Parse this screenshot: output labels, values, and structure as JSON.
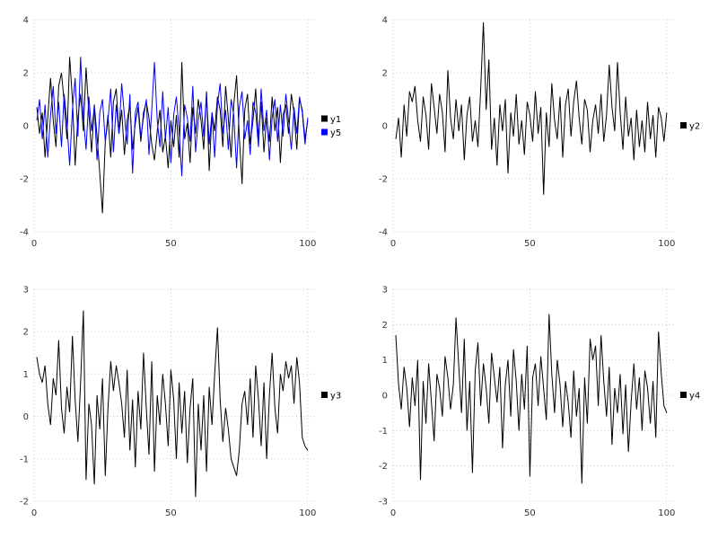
{
  "chart_data": [
    {
      "type": "line",
      "position": "top-left",
      "title": "",
      "xlabel": "",
      "ylabel": "",
      "xlim": [
        0,
        103
      ],
      "ylim": [
        -4,
        4
      ],
      "x_ticks": [
        0,
        50,
        100
      ],
      "y_ticks": [
        -4,
        -2,
        0,
        2,
        4
      ],
      "grid": true,
      "legend_position": "right-center",
      "series": [
        {
          "name": "y1",
          "color": "#000000",
          "values": [
            0.7,
            -0.3,
            0.5,
            -1.2,
            0.3,
            1.8,
            0.2,
            -0.8,
            1.5,
            2.0,
            0.9,
            -0.5,
            2.6,
            1.0,
            -1.5,
            0.3,
            1.2,
            -0.2,
            2.2,
            0.5,
            -1.0,
            0.8,
            -0.4,
            -1.8,
            -3.3,
            -0.6,
            0.4,
            -1.2,
            0.9,
            1.4,
            -0.3,
            0.6,
            -1.1,
            0.2,
            0.8,
            -0.9,
            0.1,
            0.7,
            -0.6,
            0.5,
            0.9,
            0.3,
            -0.7,
            -1.3,
            -0.2,
            0.6,
            -1.0,
            -0.4,
            -1.6,
            0.2,
            -0.8,
            0.4,
            -1.2,
            2.4,
            -0.5,
            0.1,
            -1.4,
            0.7,
            -0.3,
            1.0,
            0.2,
            -0.9,
            1.3,
            -1.7,
            0.5,
            -0.2,
            1.1,
            0.6,
            -0.8,
            1.5,
            0.3,
            -1.2,
            0.8,
            1.9,
            -0.4,
            -2.2,
            0.6,
            1.2,
            -0.7,
            0.2,
            1.4,
            -0.5,
            0.9,
            -1.0,
            0.3,
            -0.6,
            1.1,
            -0.2,
            0.7,
            -1.4,
            0.4,
            0.8,
            -0.3,
            1.2,
            0.5,
            -0.9,
            1.0,
            0.6,
            -0.5,
            0.2
          ]
        },
        {
          "name": "y5",
          "color": "#0000ff",
          "values": [
            0.2,
            1.0,
            -0.5,
            0.8,
            -1.2,
            0.4,
            1.5,
            -0.3,
            0.9,
            -0.8,
            1.2,
            0.1,
            -1.5,
            0.6,
            1.8,
            -0.4,
            2.6,
            0.3,
            -0.9,
            1.1,
            -0.2,
            0.7,
            -1.3,
            0.5,
            1.0,
            -0.6,
            0.2,
            1.4,
            -1.0,
            0.8,
            -0.3,
            1.6,
            0.4,
            -0.7,
            1.2,
            -1.8,
            0.5,
            0.9,
            -0.4,
            0.3,
            1.0,
            -1.1,
            0.6,
            2.4,
            0.2,
            -0.8,
            1.3,
            -0.5,
            0.7,
            -1.4,
            0.4,
            1.1,
            -0.2,
            -1.9,
            0.8,
            0.3,
            -0.6,
            1.5,
            -1.0,
            0.2,
            0.9,
            -0.4,
            1.2,
            -0.7,
            0.5,
            -1.2,
            0.8,
            1.6,
            -0.3,
            0.6,
            -0.9,
            1.0,
            0.4,
            -1.6,
            0.7,
            1.3,
            -0.5,
            0.2,
            -1.1,
            0.9,
            0.5,
            -0.8,
            1.4,
            -0.2,
            0.6,
            -1.3,
            0.3,
            1.0,
            -0.6,
            0.8,
            -0.4,
            1.2,
            0.2,
            -0.9,
            0.7,
            -0.3,
            1.1,
            0.5,
            -0.7,
            0.3
          ]
        }
      ]
    },
    {
      "type": "line",
      "position": "top-right",
      "title": "",
      "xlabel": "",
      "ylabel": "",
      "xlim": [
        0,
        103
      ],
      "ylim": [
        -4,
        4
      ],
      "x_ticks": [
        0,
        50,
        100
      ],
      "y_ticks": [
        -4,
        -2,
        0,
        2,
        4
      ],
      "grid": true,
      "legend_position": "right-center",
      "series": [
        {
          "name": "y2",
          "color": "#000000",
          "values": [
            -0.5,
            0.3,
            -1.2,
            0.8,
            -0.4,
            1.3,
            0.9,
            1.5,
            0.2,
            -0.6,
            1.1,
            0.4,
            -0.9,
            1.6,
            0.7,
            -0.3,
            1.2,
            0.5,
            -1.0,
            2.1,
            0.3,
            -0.5,
            1.0,
            -0.2,
            0.8,
            -1.3,
            0.4,
            1.1,
            -0.6,
            0.2,
            -0.8,
            1.4,
            3.9,
            0.6,
            2.5,
            -0.9,
            0.3,
            -1.5,
            0.8,
            -0.2,
            1.0,
            -1.8,
            0.5,
            -0.4,
            1.2,
            -0.7,
            0.2,
            -1.1,
            0.9,
            0.4,
            -0.6,
            1.3,
            -0.3,
            0.7,
            -2.6,
            0.5,
            -0.8,
            1.6,
            0.2,
            -0.5,
            1.1,
            -1.2,
            0.8,
            1.4,
            -0.4,
            0.9,
            1.7,
            0.3,
            -0.7,
            1.0,
            0.6,
            -1.0,
            0.2,
            0.8,
            -0.3,
            1.2,
            -0.6,
            0.4,
            2.3,
            0.7,
            -0.2,
            2.4,
            0.5,
            -0.9,
            1.1,
            -0.4,
            0.3,
            -1.3,
            0.6,
            -0.8,
            0.2,
            -1.0,
            0.9,
            -0.5,
            0.4,
            -1.2,
            0.7,
            0.3,
            -0.6,
            0.5
          ]
        }
      ]
    },
    {
      "type": "line",
      "position": "bottom-left",
      "title": "",
      "xlabel": "",
      "ylabel": "",
      "xlim": [
        0,
        103
      ],
      "ylim": [
        -2,
        3
      ],
      "x_ticks": [
        0,
        50,
        100
      ],
      "y_ticks": [
        -2,
        -1,
        0,
        1,
        2,
        3
      ],
      "grid": true,
      "legend_position": "right-center",
      "series": [
        {
          "name": "y3",
          "color": "#000000",
          "values": [
            1.4,
            1.0,
            0.8,
            1.2,
            0.3,
            -0.2,
            0.9,
            0.5,
            1.8,
            0.2,
            -0.4,
            0.7,
            0.1,
            1.9,
            0.4,
            -0.6,
            0.8,
            2.5,
            -1.5,
            0.3,
            -0.2,
            -1.6,
            0.5,
            -0.3,
            0.9,
            -1.4,
            0.2,
            1.3,
            0.6,
            1.2,
            0.8,
            0.3,
            -0.5,
            1.1,
            -0.8,
            0.4,
            -1.2,
            0.6,
            -0.3,
            1.5,
            0.2,
            -0.9,
            1.3,
            -1.3,
            0.5,
            -0.2,
            1.0,
            0.3,
            -0.7,
            1.1,
            0.4,
            -1.0,
            0.8,
            -0.4,
            0.6,
            -1.1,
            0.2,
            0.9,
            -1.9,
            0.3,
            -0.8,
            0.5,
            -1.3,
            0.7,
            -0.2,
            1.0,
            2.1,
            0.4,
            -0.6,
            0.2,
            -0.3,
            -1.0,
            -1.2,
            -1.4,
            -0.8,
            0.3,
            0.6,
            -0.2,
            0.9,
            -0.5,
            1.2,
            0.4,
            -0.7,
            0.8,
            -1.0,
            0.5,
            1.5,
            0.2,
            -0.4,
            1.0,
            0.6,
            1.3,
            0.9,
            1.2,
            0.3,
            1.4,
            0.8,
            -0.5,
            -0.7,
            -0.8
          ]
        }
      ]
    },
    {
      "type": "line",
      "position": "bottom-right",
      "title": "",
      "xlabel": "",
      "ylabel": "",
      "xlim": [
        0,
        103
      ],
      "ylim": [
        -3,
        3
      ],
      "x_ticks": [
        0,
        50,
        100
      ],
      "y_ticks": [
        -3,
        -2,
        -1,
        0,
        1,
        2,
        3
      ],
      "grid": true,
      "legend_position": "right-center",
      "series": [
        {
          "name": "y4",
          "color": "#000000",
          "values": [
            1.7,
            0.3,
            -0.4,
            0.8,
            0.2,
            -0.9,
            0.5,
            -0.3,
            1.0,
            -2.4,
            0.4,
            -0.8,
            0.9,
            -0.2,
            -1.3,
            0.6,
            0.2,
            -0.6,
            1.1,
            0.5,
            -0.4,
            0.3,
            2.2,
            0.8,
            -0.5,
            1.6,
            -1.0,
            0.4,
            -2.2,
            0.7,
            1.5,
            -0.3,
            0.9,
            0.2,
            -0.8,
            1.2,
            0.5,
            -0.2,
            0.8,
            -1.5,
            0.3,
            1.0,
            -0.6,
            1.3,
            0.4,
            -1.0,
            0.6,
            -0.4,
            1.4,
            -2.3,
            0.5,
            0.9,
            -0.3,
            1.1,
            0.2,
            -0.7,
            2.3,
            0.6,
            -0.5,
            1.0,
            0.3,
            -0.9,
            0.4,
            -0.2,
            -1.2,
            0.7,
            -0.6,
            0.2,
            -2.5,
            0.5,
            -0.8,
            1.6,
            1.0,
            1.4,
            -0.3,
            1.7,
            0.4,
            -0.6,
            0.8,
            -1.4,
            0.2,
            -0.5,
            0.6,
            -1.1,
            0.3,
            -1.6,
            -0.2,
            0.9,
            -0.4,
            0.5,
            -1.0,
            0.7,
            0.2,
            -0.8,
            0.4,
            -1.2,
            1.8,
            0.6,
            -0.3,
            -0.5
          ]
        }
      ]
    }
  ],
  "style": {
    "background": "#ffffff",
    "grid_color": "#c8c8c8",
    "tick_label_color": "#333333"
  }
}
